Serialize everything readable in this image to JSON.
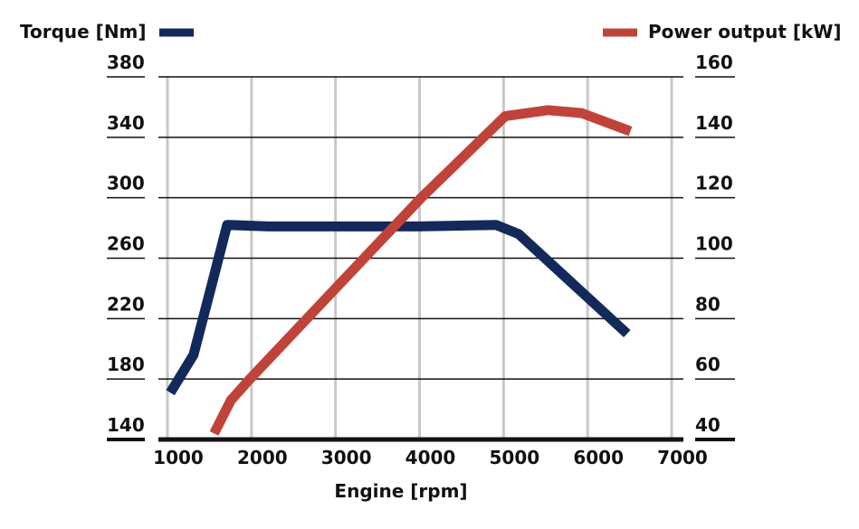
{
  "chart_data": {
    "type": "line",
    "title": "",
    "xlabel": "Engine [rpm]",
    "xlim": [
      1000,
      7000
    ],
    "xticks": [
      1000,
      2000,
      3000,
      4000,
      5000,
      6000,
      7000
    ],
    "y_left": {
      "label": "Torque [Nm]",
      "lim": [
        140,
        380
      ],
      "ticks": [
        140,
        180,
        220,
        260,
        300,
        340,
        380
      ]
    },
    "y_right": {
      "label": "Power output [kW]",
      "lim": [
        40,
        160
      ],
      "ticks": [
        40,
        60,
        80,
        100,
        120,
        140,
        160
      ]
    },
    "grid": true,
    "legend_placement": "top",
    "series": [
      {
        "name": "Torque [Nm]",
        "axis": "left",
        "color": "#13295a",
        "x": [
          1035,
          1310,
          1530,
          1710,
          2200,
          3000,
          4000,
          4910,
          5180,
          6470
        ],
        "y": [
          171,
          196,
          243,
          282,
          281,
          281,
          281,
          282,
          276,
          210
        ]
      },
      {
        "name": "Power output [kW]",
        "axis": "right",
        "color": "#c0433a",
        "x": [
          1555,
          1755,
          1980,
          3000,
          4020,
          5020,
          5530,
          5930,
          6510
        ],
        "y": [
          42,
          53,
          60,
          90,
          120,
          147,
          149,
          148,
          142
        ]
      }
    ]
  }
}
